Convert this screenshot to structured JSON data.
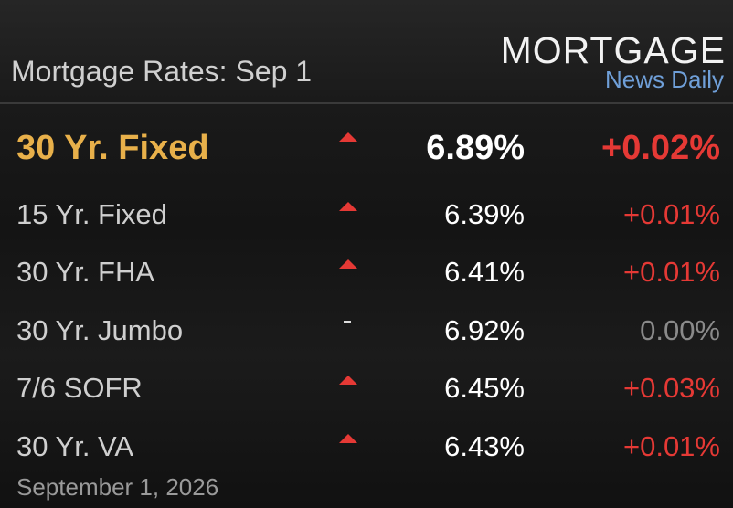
{
  "header": {
    "title": "Mortgage Rates: Sep 1",
    "logo": {
      "name": "MORTGAGE",
      "tagline": "News Daily"
    }
  },
  "table": {
    "rows": [
      {
        "name": "30 Yr. Fixed",
        "rate": "6.89%",
        "change": "+0.02%",
        "direction": "up"
      },
      {
        "name": "15 Yr. Fixed",
        "rate": "6.39%",
        "change": "+0.01%",
        "direction": "up"
      },
      {
        "name": "30 Yr. FHA",
        "rate": "6.41%",
        "change": "+0.01%",
        "direction": "up"
      },
      {
        "name": "30 Yr. Jumbo",
        "rate": "6.92%",
        "change": "0.00%",
        "direction": "flat"
      },
      {
        "name": "7/6 SOFR",
        "rate": "6.45%",
        "change": "+0.03%",
        "direction": "up"
      },
      {
        "name": "30 Yr. VA",
        "rate": "6.43%",
        "change": "+0.01%",
        "direction": "up"
      }
    ]
  },
  "footer": {
    "date": "September 1, 2026"
  }
}
